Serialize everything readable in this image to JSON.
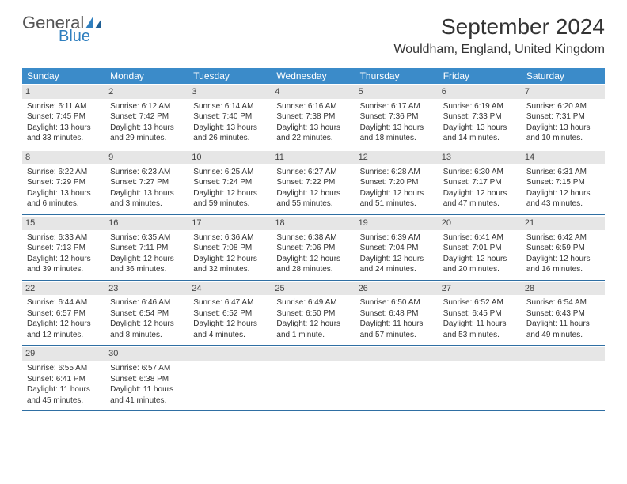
{
  "logo": {
    "part1": "General",
    "part2": "Blue",
    "main_color": "#555555",
    "accent_color": "#2f7fbf"
  },
  "header": {
    "month_title": "September 2024",
    "location": "Wouldham, England, United Kingdom"
  },
  "colors": {
    "header_bg": "#3b8bc9",
    "week_border": "#2f6fa3",
    "daynum_bg": "#e6e6e6"
  },
  "weekdays": [
    "Sunday",
    "Monday",
    "Tuesday",
    "Wednesday",
    "Thursday",
    "Friday",
    "Saturday"
  ],
  "days": [
    {
      "n": "1",
      "sr": "Sunrise: 6:11 AM",
      "ss": "Sunset: 7:45 PM",
      "d1": "Daylight: 13 hours",
      "d2": "and 33 minutes."
    },
    {
      "n": "2",
      "sr": "Sunrise: 6:12 AM",
      "ss": "Sunset: 7:42 PM",
      "d1": "Daylight: 13 hours",
      "d2": "and 29 minutes."
    },
    {
      "n": "3",
      "sr": "Sunrise: 6:14 AM",
      "ss": "Sunset: 7:40 PM",
      "d1": "Daylight: 13 hours",
      "d2": "and 26 minutes."
    },
    {
      "n": "4",
      "sr": "Sunrise: 6:16 AM",
      "ss": "Sunset: 7:38 PM",
      "d1": "Daylight: 13 hours",
      "d2": "and 22 minutes."
    },
    {
      "n": "5",
      "sr": "Sunrise: 6:17 AM",
      "ss": "Sunset: 7:36 PM",
      "d1": "Daylight: 13 hours",
      "d2": "and 18 minutes."
    },
    {
      "n": "6",
      "sr": "Sunrise: 6:19 AM",
      "ss": "Sunset: 7:33 PM",
      "d1": "Daylight: 13 hours",
      "d2": "and 14 minutes."
    },
    {
      "n": "7",
      "sr": "Sunrise: 6:20 AM",
      "ss": "Sunset: 7:31 PM",
      "d1": "Daylight: 13 hours",
      "d2": "and 10 minutes."
    },
    {
      "n": "8",
      "sr": "Sunrise: 6:22 AM",
      "ss": "Sunset: 7:29 PM",
      "d1": "Daylight: 13 hours",
      "d2": "and 6 minutes."
    },
    {
      "n": "9",
      "sr": "Sunrise: 6:23 AM",
      "ss": "Sunset: 7:27 PM",
      "d1": "Daylight: 13 hours",
      "d2": "and 3 minutes."
    },
    {
      "n": "10",
      "sr": "Sunrise: 6:25 AM",
      "ss": "Sunset: 7:24 PM",
      "d1": "Daylight: 12 hours",
      "d2": "and 59 minutes."
    },
    {
      "n": "11",
      "sr": "Sunrise: 6:27 AM",
      "ss": "Sunset: 7:22 PM",
      "d1": "Daylight: 12 hours",
      "d2": "and 55 minutes."
    },
    {
      "n": "12",
      "sr": "Sunrise: 6:28 AM",
      "ss": "Sunset: 7:20 PM",
      "d1": "Daylight: 12 hours",
      "d2": "and 51 minutes."
    },
    {
      "n": "13",
      "sr": "Sunrise: 6:30 AM",
      "ss": "Sunset: 7:17 PM",
      "d1": "Daylight: 12 hours",
      "d2": "and 47 minutes."
    },
    {
      "n": "14",
      "sr": "Sunrise: 6:31 AM",
      "ss": "Sunset: 7:15 PM",
      "d1": "Daylight: 12 hours",
      "d2": "and 43 minutes."
    },
    {
      "n": "15",
      "sr": "Sunrise: 6:33 AM",
      "ss": "Sunset: 7:13 PM",
      "d1": "Daylight: 12 hours",
      "d2": "and 39 minutes."
    },
    {
      "n": "16",
      "sr": "Sunrise: 6:35 AM",
      "ss": "Sunset: 7:11 PM",
      "d1": "Daylight: 12 hours",
      "d2": "and 36 minutes."
    },
    {
      "n": "17",
      "sr": "Sunrise: 6:36 AM",
      "ss": "Sunset: 7:08 PM",
      "d1": "Daylight: 12 hours",
      "d2": "and 32 minutes."
    },
    {
      "n": "18",
      "sr": "Sunrise: 6:38 AM",
      "ss": "Sunset: 7:06 PM",
      "d1": "Daylight: 12 hours",
      "d2": "and 28 minutes."
    },
    {
      "n": "19",
      "sr": "Sunrise: 6:39 AM",
      "ss": "Sunset: 7:04 PM",
      "d1": "Daylight: 12 hours",
      "d2": "and 24 minutes."
    },
    {
      "n": "20",
      "sr": "Sunrise: 6:41 AM",
      "ss": "Sunset: 7:01 PM",
      "d1": "Daylight: 12 hours",
      "d2": "and 20 minutes."
    },
    {
      "n": "21",
      "sr": "Sunrise: 6:42 AM",
      "ss": "Sunset: 6:59 PM",
      "d1": "Daylight: 12 hours",
      "d2": "and 16 minutes."
    },
    {
      "n": "22",
      "sr": "Sunrise: 6:44 AM",
      "ss": "Sunset: 6:57 PM",
      "d1": "Daylight: 12 hours",
      "d2": "and 12 minutes."
    },
    {
      "n": "23",
      "sr": "Sunrise: 6:46 AM",
      "ss": "Sunset: 6:54 PM",
      "d1": "Daylight: 12 hours",
      "d2": "and 8 minutes."
    },
    {
      "n": "24",
      "sr": "Sunrise: 6:47 AM",
      "ss": "Sunset: 6:52 PM",
      "d1": "Daylight: 12 hours",
      "d2": "and 4 minutes."
    },
    {
      "n": "25",
      "sr": "Sunrise: 6:49 AM",
      "ss": "Sunset: 6:50 PM",
      "d1": "Daylight: 12 hours",
      "d2": "and 1 minute."
    },
    {
      "n": "26",
      "sr": "Sunrise: 6:50 AM",
      "ss": "Sunset: 6:48 PM",
      "d1": "Daylight: 11 hours",
      "d2": "and 57 minutes."
    },
    {
      "n": "27",
      "sr": "Sunrise: 6:52 AM",
      "ss": "Sunset: 6:45 PM",
      "d1": "Daylight: 11 hours",
      "d2": "and 53 minutes."
    },
    {
      "n": "28",
      "sr": "Sunrise: 6:54 AM",
      "ss": "Sunset: 6:43 PM",
      "d1": "Daylight: 11 hours",
      "d2": "and 49 minutes."
    },
    {
      "n": "29",
      "sr": "Sunrise: 6:55 AM",
      "ss": "Sunset: 6:41 PM",
      "d1": "Daylight: 11 hours",
      "d2": "and 45 minutes."
    },
    {
      "n": "30",
      "sr": "Sunrise: 6:57 AM",
      "ss": "Sunset: 6:38 PM",
      "d1": "Daylight: 11 hours",
      "d2": "and 41 minutes."
    }
  ]
}
